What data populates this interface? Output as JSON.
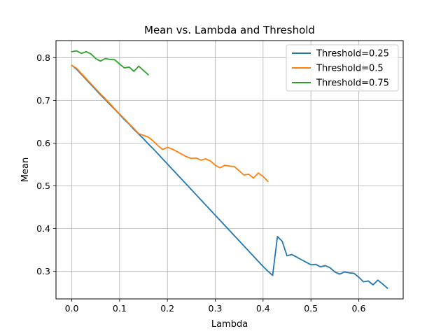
{
  "chart_data": {
    "type": "line",
    "title": "Mean vs. Lambda and Threshold",
    "xlabel": "Lambda",
    "ylabel": "Mean",
    "xlim": [
      -0.033,
      0.693
    ],
    "ylim": [
      0.235,
      0.84
    ],
    "xticks": [
      0.0,
      0.1,
      0.2,
      0.3,
      0.4,
      0.5,
      0.6
    ],
    "xtick_labels": [
      "0.0",
      "0.1",
      "0.2",
      "0.3",
      "0.4",
      "0.5",
      "0.6"
    ],
    "yticks": [
      0.3,
      0.4,
      0.5,
      0.6,
      0.7,
      0.8
    ],
    "ytick_labels": [
      "0.3",
      "0.4",
      "0.5",
      "0.6",
      "0.7",
      "0.8"
    ],
    "grid": true,
    "legend_position": "top-right",
    "series": [
      {
        "name": "Threshold=0.25",
        "color": "#1f77b4",
        "x": [
          0.0,
          0.01,
          0.02,
          0.03,
          0.04,
          0.05,
          0.06,
          0.07,
          0.08,
          0.09,
          0.1,
          0.11,
          0.12,
          0.13,
          0.14,
          0.15,
          0.16,
          0.17,
          0.18,
          0.19,
          0.2,
          0.21,
          0.22,
          0.23,
          0.24,
          0.25,
          0.26,
          0.27,
          0.28,
          0.29,
          0.3,
          0.31,
          0.32,
          0.33,
          0.34,
          0.35,
          0.36,
          0.37,
          0.38,
          0.39,
          0.4,
          0.41,
          0.42,
          0.43,
          0.44,
          0.45,
          0.46,
          0.47,
          0.48,
          0.49,
          0.5,
          0.51,
          0.52,
          0.53,
          0.54,
          0.55,
          0.56,
          0.57,
          0.58,
          0.59,
          0.6,
          0.61,
          0.62,
          0.63,
          0.64,
          0.65,
          0.66
        ],
        "y": [
          0.782,
          0.773,
          0.761,
          0.749,
          0.737,
          0.725,
          0.713,
          0.702,
          0.69,
          0.679,
          0.667,
          0.655,
          0.644,
          0.632,
          0.621,
          0.61,
          0.598,
          0.587,
          0.575,
          0.563,
          0.551,
          0.539,
          0.527,
          0.515,
          0.503,
          0.491,
          0.479,
          0.467,
          0.455,
          0.443,
          0.431,
          0.419,
          0.407,
          0.395,
          0.383,
          0.371,
          0.359,
          0.347,
          0.335,
          0.323,
          0.311,
          0.3,
          0.29,
          0.381,
          0.37,
          0.336,
          0.339,
          0.333,
          0.327,
          0.321,
          0.315,
          0.316,
          0.31,
          0.313,
          0.308,
          0.298,
          0.293,
          0.298,
          0.296,
          0.295,
          0.286,
          0.275,
          0.277,
          0.268,
          0.279,
          0.27,
          0.26
        ]
      },
      {
        "name": "Threshold=0.5",
        "color": "#ff7f0e",
        "x": [
          0.0,
          0.01,
          0.02,
          0.03,
          0.04,
          0.05,
          0.06,
          0.07,
          0.08,
          0.09,
          0.1,
          0.11,
          0.12,
          0.13,
          0.14,
          0.15,
          0.16,
          0.17,
          0.18,
          0.19,
          0.2,
          0.21,
          0.22,
          0.23,
          0.24,
          0.25,
          0.26,
          0.27,
          0.28,
          0.29,
          0.3,
          0.31,
          0.32,
          0.33,
          0.34,
          0.35,
          0.36,
          0.37,
          0.38,
          0.39,
          0.4,
          0.41
        ],
        "y": [
          0.782,
          0.775,
          0.763,
          0.751,
          0.739,
          0.727,
          0.715,
          0.704,
          0.692,
          0.68,
          0.668,
          0.657,
          0.645,
          0.634,
          0.622,
          0.618,
          0.614,
          0.605,
          0.594,
          0.585,
          0.59,
          0.586,
          0.58,
          0.574,
          0.568,
          0.564,
          0.565,
          0.56,
          0.563,
          0.558,
          0.548,
          0.542,
          0.548,
          0.546,
          0.545,
          0.535,
          0.525,
          0.527,
          0.518,
          0.53,
          0.522,
          0.51
        ]
      },
      {
        "name": "Threshold=0.75",
        "color": "#2ca02c",
        "x": [
          0.0,
          0.01,
          0.02,
          0.03,
          0.04,
          0.05,
          0.06,
          0.07,
          0.08,
          0.09,
          0.1,
          0.11,
          0.12,
          0.13,
          0.14,
          0.15,
          0.16
        ],
        "y": [
          0.814,
          0.816,
          0.81,
          0.814,
          0.809,
          0.798,
          0.792,
          0.798,
          0.796,
          0.795,
          0.785,
          0.776,
          0.778,
          0.768,
          0.78,
          0.77,
          0.76
        ]
      }
    ]
  }
}
